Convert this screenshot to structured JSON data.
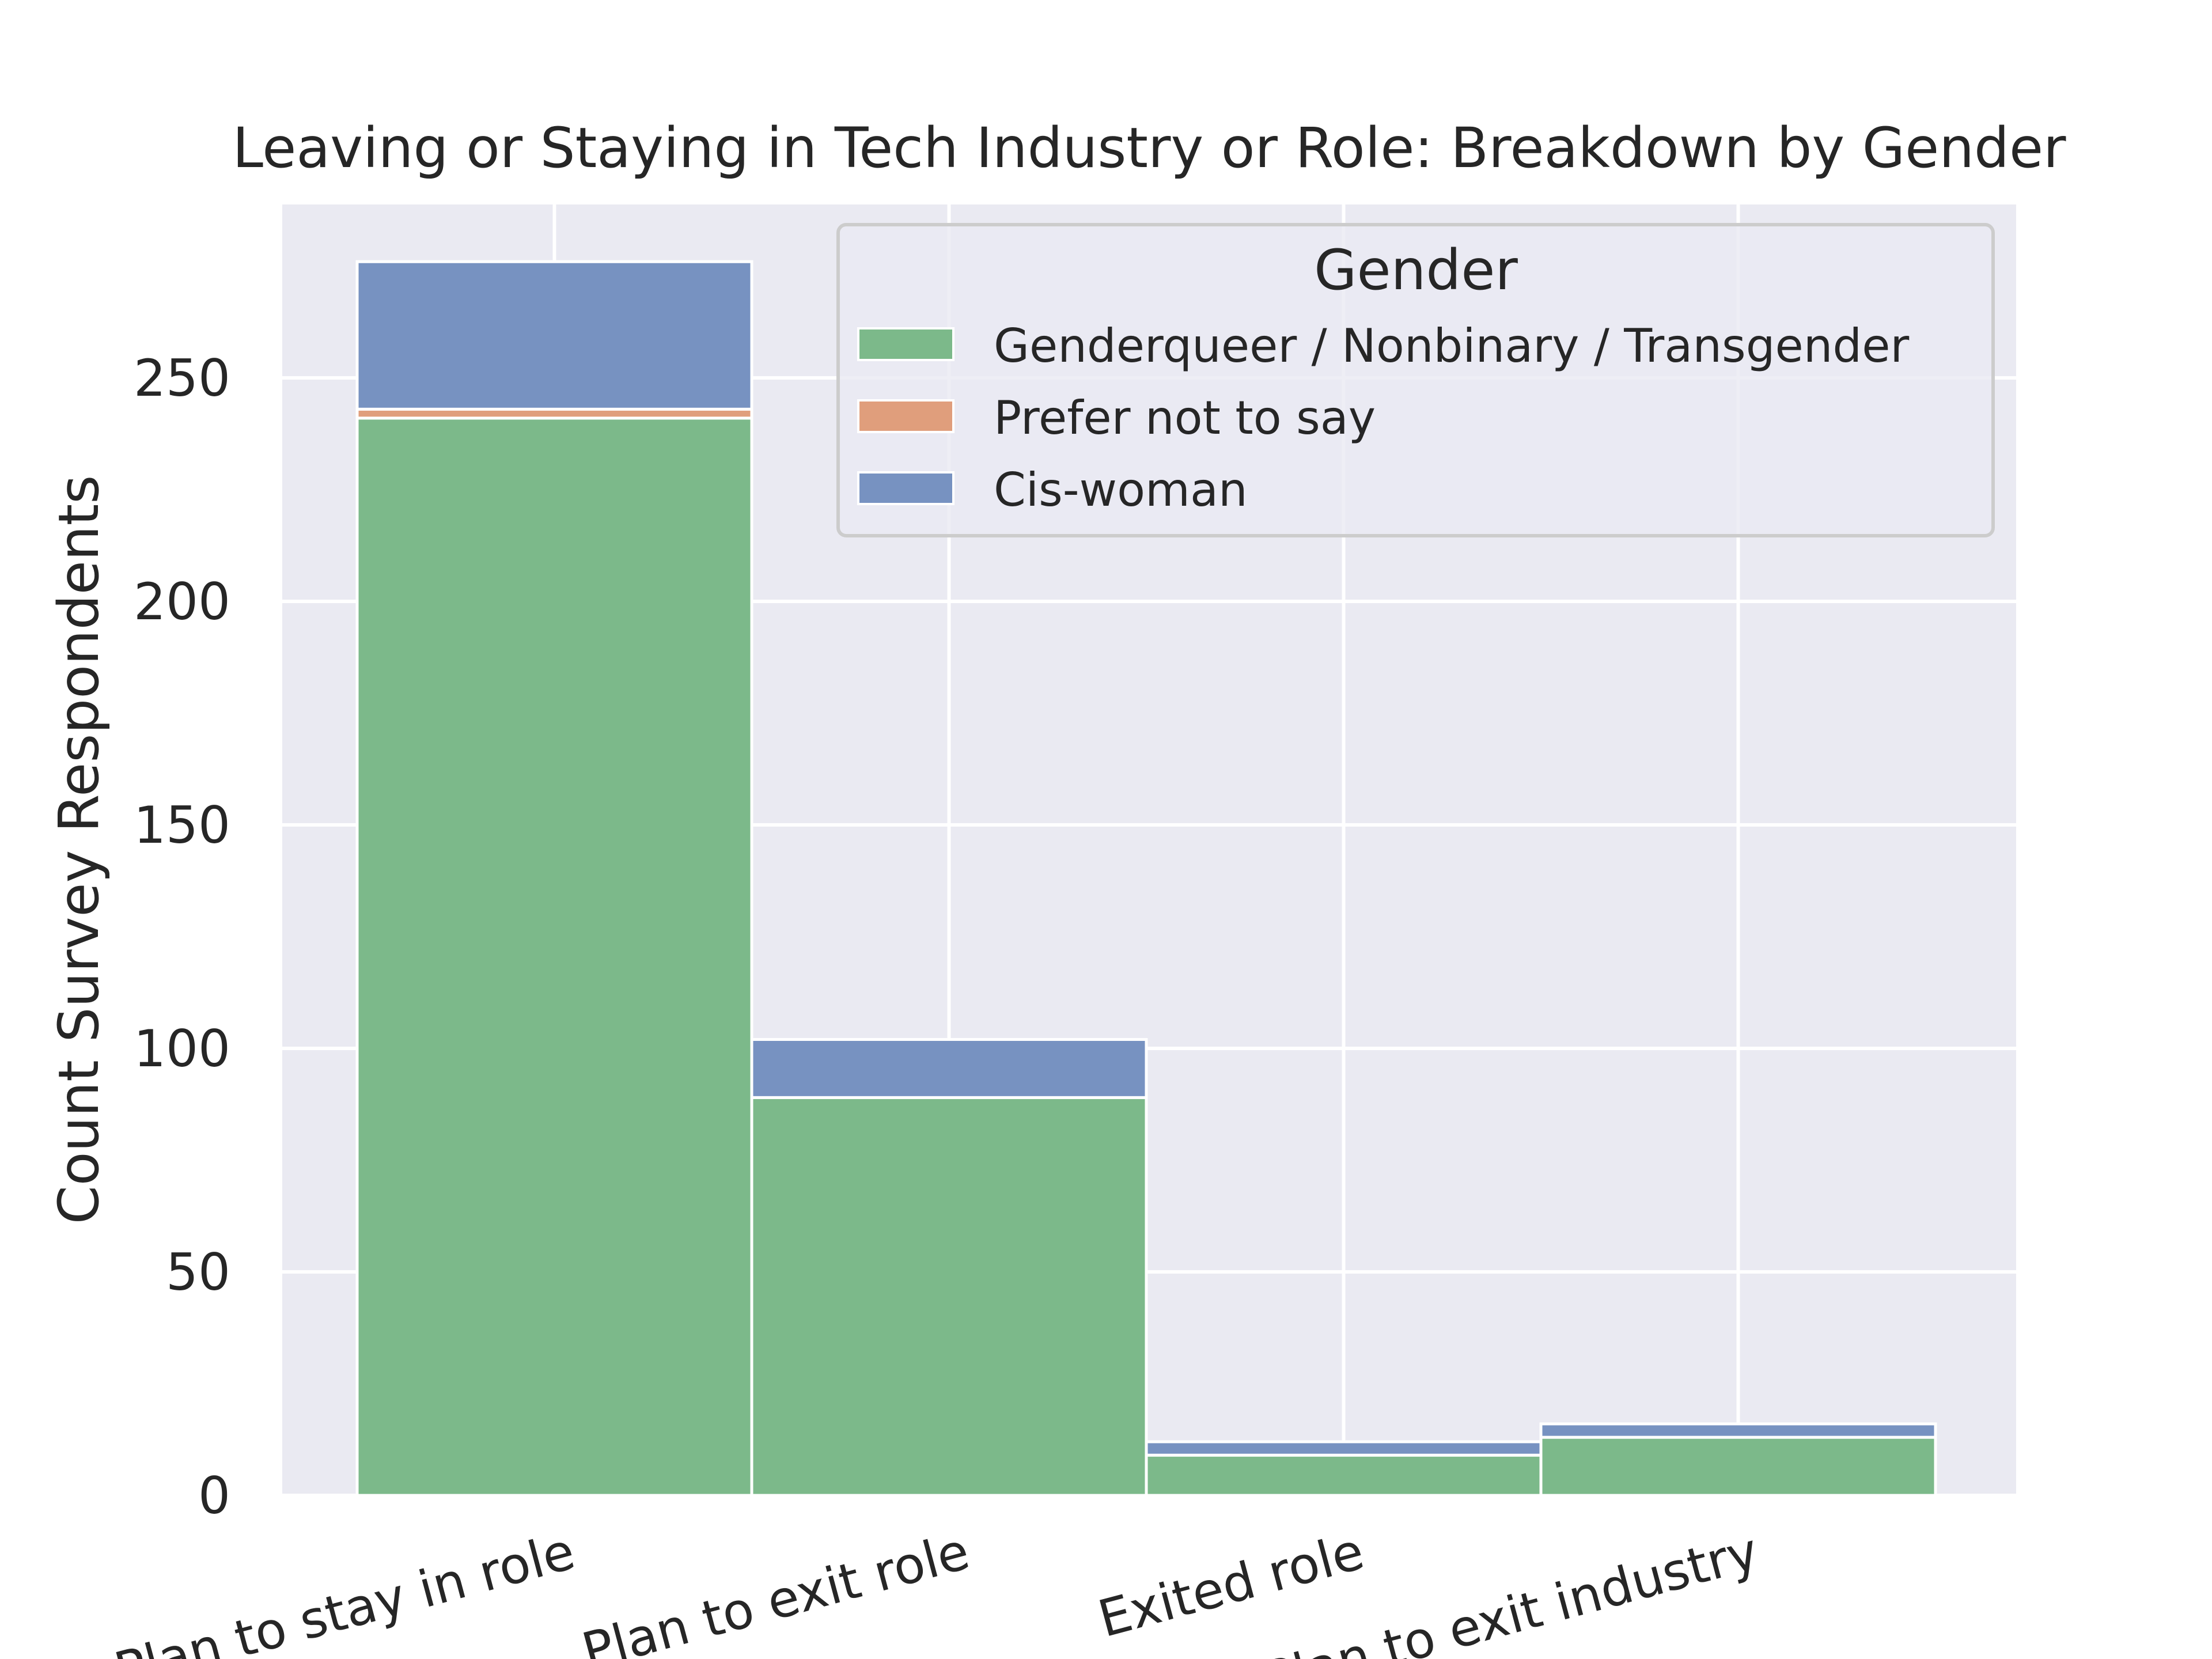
{
  "chart_data": {
    "type": "bar",
    "stacked": true,
    "title": "Leaving or Staying in Tech Industry or Role: Breakdown by Gender",
    "xlabel": "",
    "ylabel": "Count Survey Respondents",
    "categories": [
      "Plan to stay in role",
      "Plan to exit role",
      "Exited role",
      "Plan to exit industry"
    ],
    "ylim": [
      0,
      282
    ],
    "yticks": [
      0,
      50,
      100,
      150,
      200,
      250
    ],
    "grid": true,
    "legend_title": "Gender",
    "legend_position": "top-right",
    "series": [
      {
        "name": "Genderqueer / Nonbinary / Transgender",
        "color": "#7cb98a",
        "values": [
          241,
          89,
          9,
          13
        ]
      },
      {
        "name": "Prefer not to say",
        "color": "#e09e7c",
        "values": [
          2,
          0,
          0,
          0
        ]
      },
      {
        "name": "Cis-woman",
        "color": "#7792c1",
        "values": [
          33,
          13,
          3,
          3
        ]
      }
    ],
    "background_color": "#eaeaf2",
    "grid_color": "#ffffff"
  }
}
